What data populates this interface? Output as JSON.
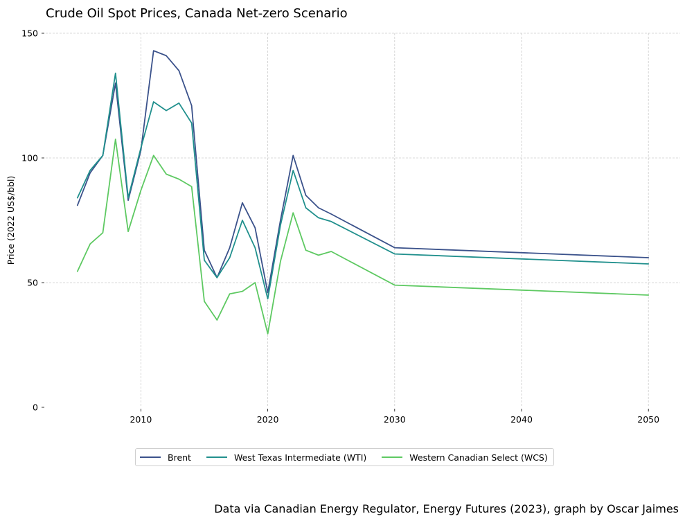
{
  "chart_data": {
    "type": "line",
    "title": "Crude Oil Spot Prices, Canada Net-zero Scenario",
    "xlabel": "",
    "ylabel": "Price (2022 US$/bbl)",
    "xlim": [
      2002.5,
      2052.5
    ],
    "ylim": [
      0,
      150
    ],
    "xticks": [
      2010,
      2020,
      2030,
      2040,
      2050
    ],
    "yticks": [
      0,
      50,
      100,
      150
    ],
    "grid": true,
    "legend_position": "bottom-center",
    "x": [
      2005,
      2006,
      2007,
      2008,
      2009,
      2010,
      2011,
      2012,
      2013,
      2014,
      2015,
      2016,
      2017,
      2018,
      2019,
      2020,
      2021,
      2022,
      2023,
      2024,
      2025,
      2030,
      2050
    ],
    "series": [
      {
        "name": "Brent",
        "color": "#3b528b",
        "values": [
          81,
          94,
          101,
          130,
          83,
          103,
          143,
          141,
          135,
          121,
          63,
          52,
          64,
          82,
          72,
          46,
          75,
          101,
          85,
          80,
          77.5,
          64,
          60
        ]
      },
      {
        "name": "West Texas Intermediate (WTI)",
        "color": "#21908d",
        "values": [
          84,
          95,
          101,
          134,
          84,
          104,
          122.5,
          119,
          122,
          114,
          59,
          52,
          60,
          75,
          64,
          43.5,
          73,
          95,
          80,
          76,
          74.5,
          61.5,
          57.5
        ]
      },
      {
        "name": "Western Canadian Select (WCS)",
        "color": "#5ec962",
        "values": [
          54.5,
          65.5,
          70,
          107.5,
          70.5,
          87,
          101,
          93.5,
          91.5,
          88.5,
          42.5,
          35,
          45.5,
          46.5,
          50,
          29.5,
          58.5,
          78,
          63,
          61,
          62.5,
          49,
          45
        ]
      }
    ],
    "caption": "Data via Canadian Energy Regulator, Energy Futures (2023), graph by Oscar Jaimes"
  }
}
